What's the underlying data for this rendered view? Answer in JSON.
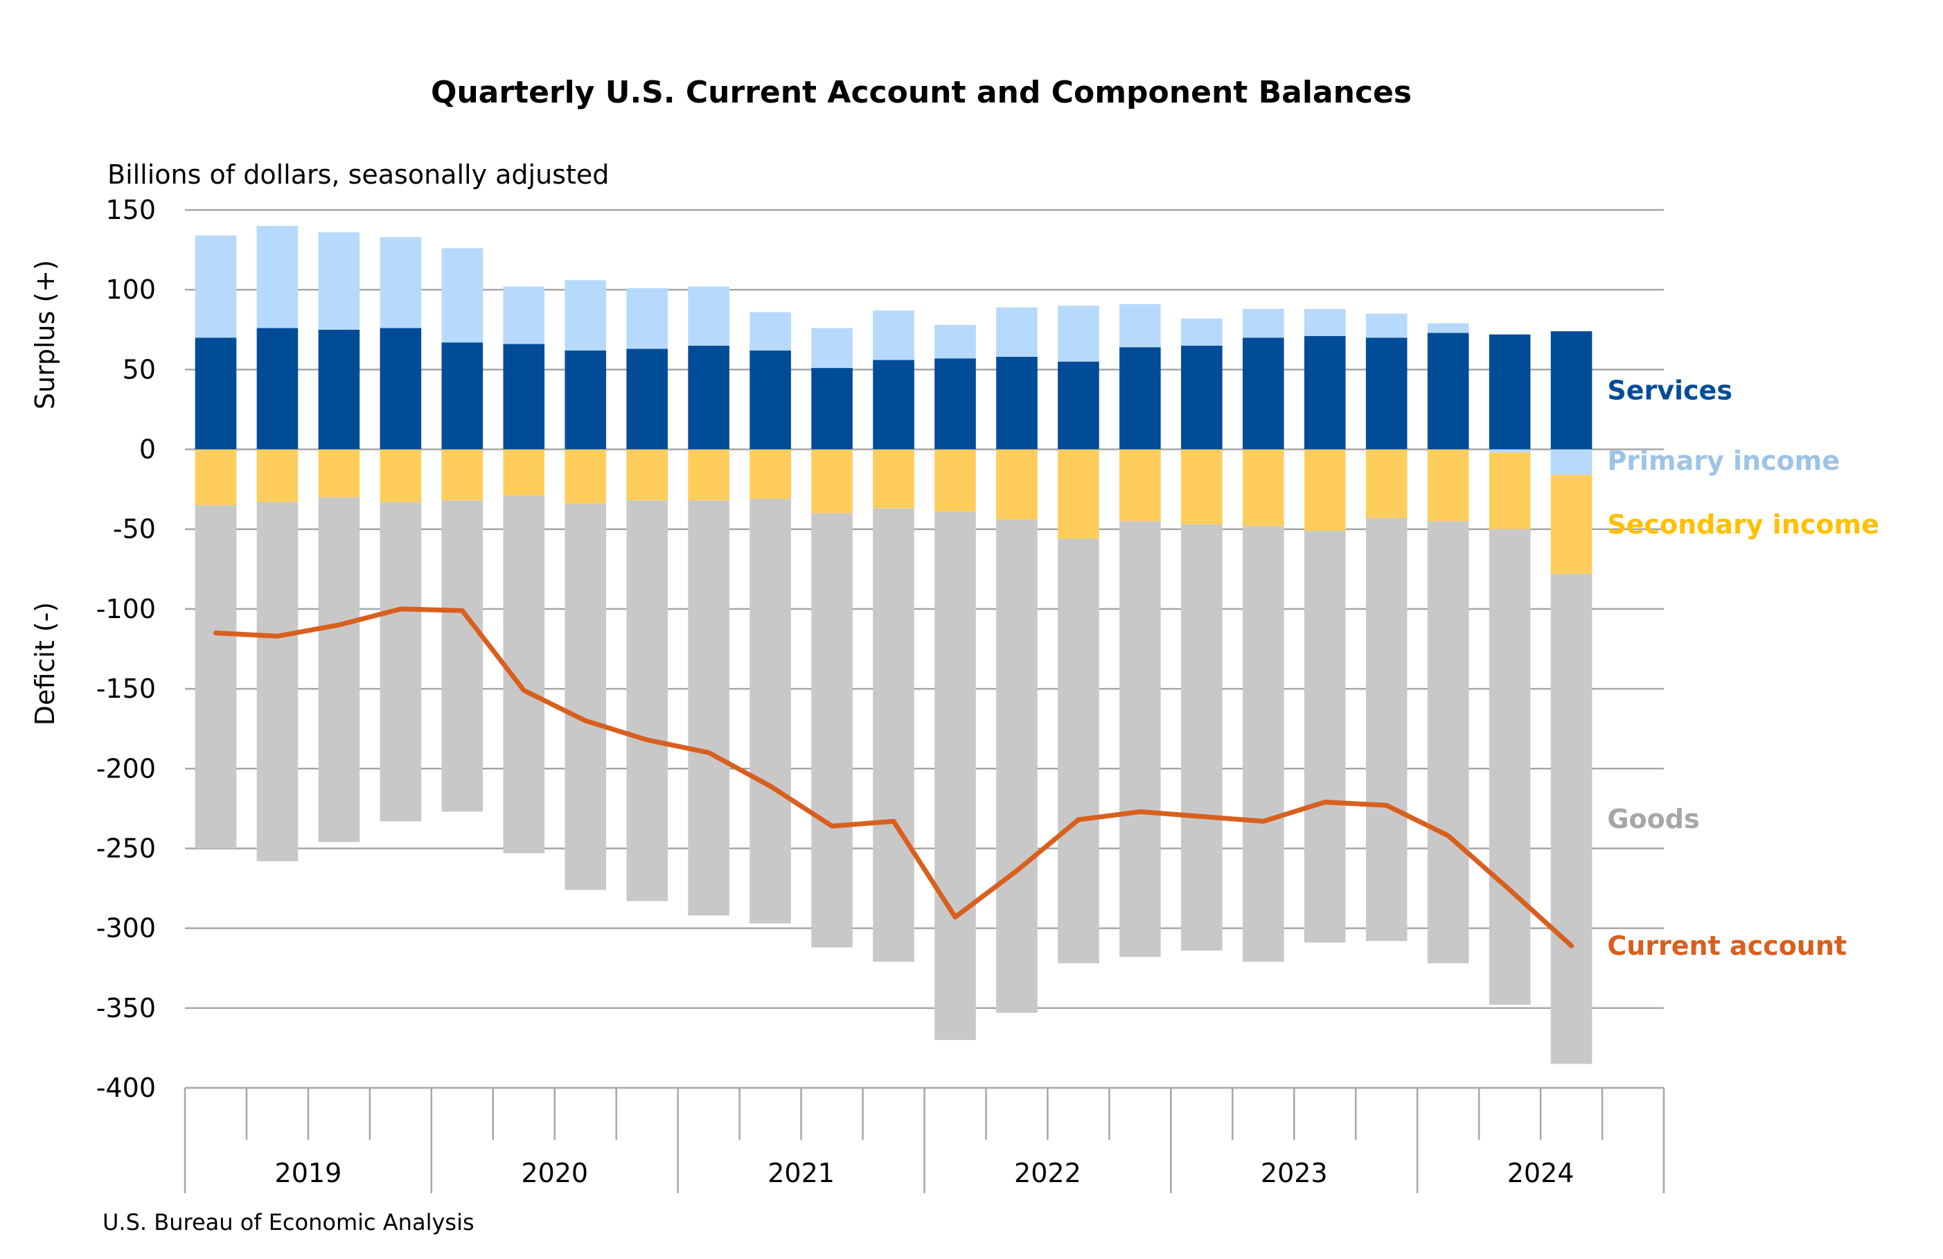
{
  "chart_data": {
    "type": "bar",
    "stacked": true,
    "title": "Quarterly U.S. Current Account and Component Balances",
    "subtitle": "Billions of dollars, seasonally adjusted",
    "ylabel_positive": "Surplus (+)",
    "ylabel_negative": "Deficit (-)",
    "ylim": [
      -400,
      150
    ],
    "yticks": [
      150,
      100,
      50,
      0,
      -50,
      -100,
      -150,
      -200,
      -250,
      -300,
      -350,
      -400
    ],
    "grid": true,
    "year_labels": [
      "2019",
      "2020",
      "2021",
      "2022",
      "2023",
      "2024"
    ],
    "categories": [
      "2019 Q1",
      "2019 Q2",
      "2019 Q3",
      "2019 Q4",
      "2020 Q1",
      "2020 Q2",
      "2020 Q3",
      "2020 Q4",
      "2021 Q1",
      "2021 Q2",
      "2021 Q3",
      "2021 Q4",
      "2022 Q1",
      "2022 Q2",
      "2022 Q3",
      "2022 Q4",
      "2023 Q1",
      "2023 Q2",
      "2023 Q3",
      "2023 Q4",
      "2024 Q1",
      "2024 Q2",
      "2024 Q3",
      "2024 Q4"
    ],
    "series": [
      {
        "name": "Services",
        "kind": "bar",
        "color": "#004C97",
        "values": [
          70,
          76,
          75,
          76,
          67,
          66,
          62,
          63,
          65,
          62,
          51,
          56,
          57,
          58,
          55,
          64,
          65,
          70,
          71,
          70,
          73,
          72,
          74,
          null
        ]
      },
      {
        "name": "Primary income",
        "kind": "bar",
        "color": "#B7D9FC",
        "values": [
          64,
          64,
          61,
          57,
          59,
          36,
          44,
          38,
          37,
          24,
          25,
          31,
          21,
          31,
          35,
          27,
          17,
          18,
          17,
          15,
          6,
          -2,
          -16,
          null
        ]
      },
      {
        "name": "Secondary income",
        "kind": "bar",
        "color": "#FFCD5C",
        "values": [
          -35,
          -33,
          -30,
          -33,
          -32,
          -29,
          -34,
          -32,
          -32,
          -31,
          -40,
          -37,
          -39,
          -44,
          -56,
          -45,
          -47,
          -48,
          -51,
          -43,
          -45,
          -48,
          -62,
          null
        ]
      },
      {
        "name": "Goods",
        "kind": "bar",
        "color": "#C8C8C8",
        "values": [
          -215,
          -225,
          -216,
          -200,
          -195,
          -224,
          -242,
          -251,
          -260,
          -266,
          -272,
          -284,
          -331,
          -309,
          -266,
          -273,
          -267,
          -273,
          -258,
          -265,
          -277,
          -298,
          -307,
          null
        ]
      },
      {
        "name": "Current account",
        "kind": "line",
        "color": "#D95F1E",
        "values": [
          -115,
          -117,
          -110,
          -100,
          -101,
          -151,
          -170,
          -182,
          -190,
          -211,
          -236,
          -233,
          -293,
          -264,
          -232,
          -227,
          -230,
          -233,
          -221,
          -223,
          -242,
          -276,
          -311,
          null
        ]
      }
    ],
    "source": "U.S. Bureau of Economic Analysis"
  }
}
